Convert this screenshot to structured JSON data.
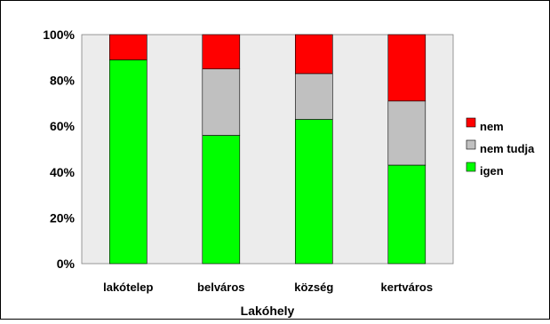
{
  "chart_data": {
    "type": "bar",
    "stacked": true,
    "normalized": true,
    "categories": [
      "lakótelep",
      "belváros",
      "község",
      "kertváros"
    ],
    "series": [
      {
        "name": "igen",
        "color": "#00ff00",
        "values": [
          89,
          56,
          63,
          43
        ]
      },
      {
        "name": "nem tudja",
        "color": "#c0c0c0",
        "values": [
          0,
          29,
          20,
          28
        ]
      },
      {
        "name": "nem",
        "color": "#ff0000",
        "values": [
          11,
          15,
          17,
          29
        ]
      }
    ],
    "legend_order": [
      "nem",
      "nem tudja",
      "igen"
    ],
    "legend_position": "right",
    "xlabel": "Lakóhely",
    "ylabel": "",
    "ylim": [
      0,
      100
    ],
    "yticks": [
      "0%",
      "20%",
      "40%",
      "60%",
      "80%",
      "100%"
    ],
    "plot_background": "#ececec",
    "grid": false
  }
}
